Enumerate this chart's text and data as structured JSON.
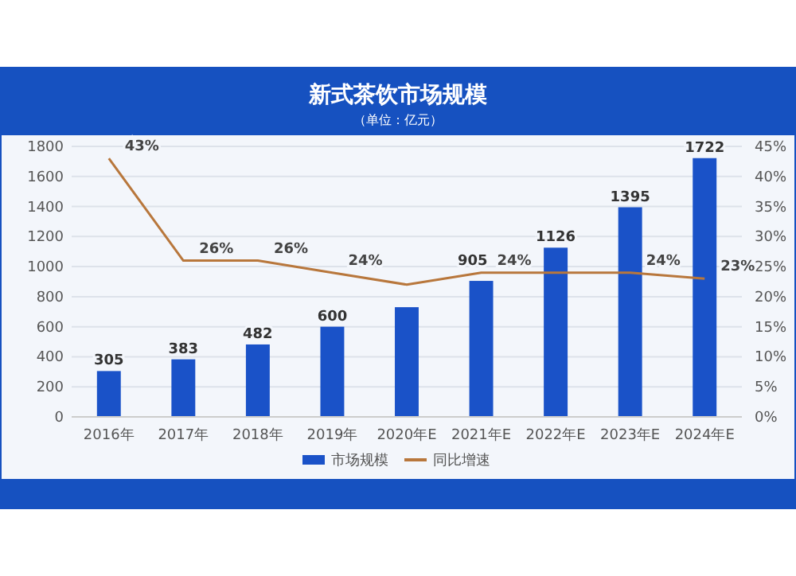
{
  "chart_data": {
    "type": "bar",
    "title": "新式茶饮市场规模",
    "subtitle": "（单位：亿元）",
    "categories": [
      "2016年",
      "2017年",
      "2018年",
      "2019年",
      "2020年E",
      "2021年E",
      "2022年E",
      "2023年E",
      "2024年E"
    ],
    "series": [
      {
        "name": "市场规模",
        "type": "bar",
        "color": "#1a52c8",
        "values": [
          305,
          383,
          482,
          600,
          730,
          905,
          1126,
          1395,
          1722
        ],
        "value_labels": [
          "305",
          "383",
          "482",
          "600",
          null,
          "905",
          "1126",
          "1395",
          "1722"
        ]
      },
      {
        "name": "同比增速",
        "type": "line",
        "axis": "y2",
        "color": "#b8773c",
        "values": [
          43,
          26,
          26,
          24,
          22,
          24,
          24,
          24,
          23
        ],
        "value_labels": [
          "43%",
          "26%",
          "26%",
          "24%",
          null,
          "24%",
          null,
          "24%",
          "23%"
        ]
      }
    ],
    "ylim": [
      0,
      1800
    ],
    "yticks": [
      0,
      200,
      400,
      600,
      800,
      1000,
      1200,
      1400,
      1600,
      1800
    ],
    "y2lim": [
      0,
      45
    ],
    "y2ticks": [
      {
        "value": 0,
        "label": "0%"
      },
      {
        "value": 5,
        "label": "5%"
      },
      {
        "value": 10,
        "label": "10%"
      },
      {
        "value": 15,
        "label": "15%"
      },
      {
        "value": 20,
        "label": "20%"
      },
      {
        "value": 25,
        "label": "25%"
      },
      {
        "value": 30,
        "label": "30%"
      },
      {
        "value": 35,
        "label": "35%"
      },
      {
        "value": 40,
        "label": "40%"
      },
      {
        "value": 45,
        "label": "45%"
      }
    ],
    "grid": "y",
    "legend": "bottom",
    "marker": "none",
    "line_style": "solid"
  }
}
